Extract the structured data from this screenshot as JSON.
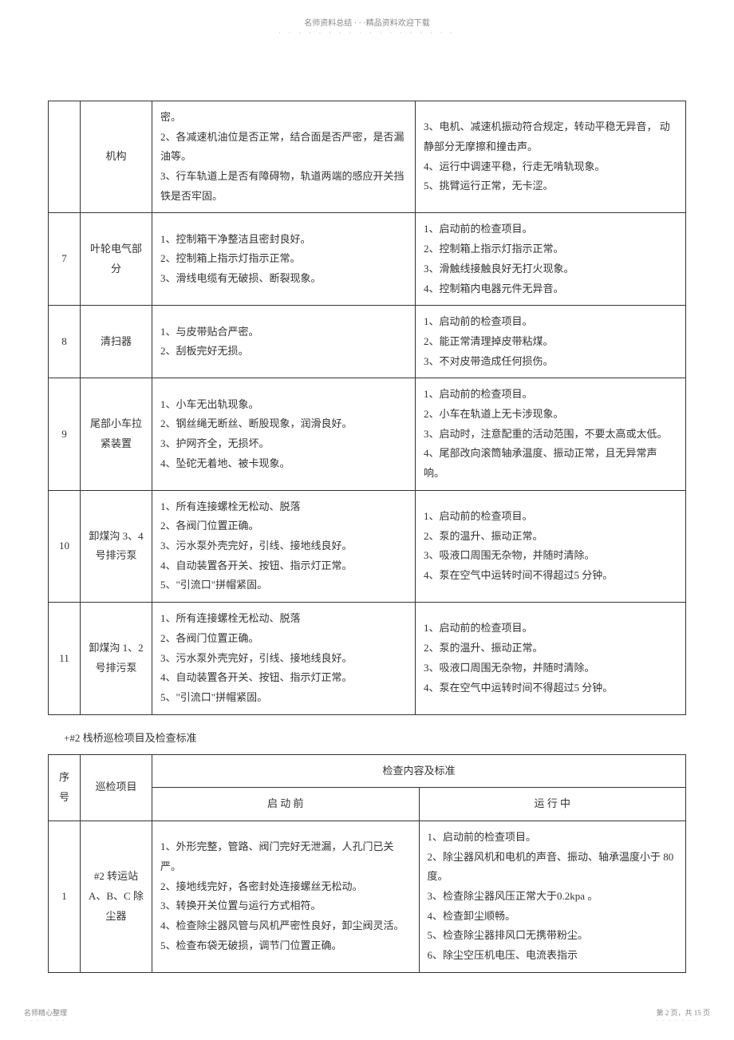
{
  "header": {
    "text": "名师资料总结 · · ·精品资料欢迎下载",
    "dots": "· · · · · · · · · · · · · · · · · ·"
  },
  "table1": {
    "rows": [
      {
        "num": "",
        "item": "机构",
        "before": "密。\n2、各减速机油位是否正常，结合面是否严密，是否漏油等。\n3、行车轨道上是否有障碍物，轨道两端的感应开关挡铁是否牢固。",
        "running": "3、电机、减速机振动符合规定，转动平稳无异音， 动静部分无摩擦和撞击声。\n4、运行中调速平稳，行走无啃轨现象。\n5、挑臂运行正常，无卡涩。"
      },
      {
        "num": "7",
        "item": "叶轮电气部分",
        "before": "1、控制箱干净整洁且密封良好。\n2、控制箱上指示灯指示正常。\n3、滑线电缆有无破损、断裂现象。",
        "running": "1、启动前的检查项目。\n2、控制箱上指示灯指示正常。\n3、滑触线接触良好无打火现象。\n4、控制箱内电器元件无异音。"
      },
      {
        "num": "8",
        "item": "清扫器",
        "before": "1、与皮带贴合严密。\n2、刮板完好无损。",
        "running": "1、启动前的检查项目。\n2、能正常清理掉皮带粘煤。\n3、不对皮带造成任何损伤。"
      },
      {
        "num": "9",
        "item": "尾部小车拉紧装置",
        "before": "1、小车无出轨现象。\n2、钢丝绳无断丝、断股现象，润滑良好。\n3、护网齐全，无损坏。\n4、坠砣无着地、被卡现象。",
        "running": "1、启动前的检查项目。\n2、小车在轨道上无卡涉现象。\n3、启动时，注意配重的活动范围，不要太高或太低。\n4、尾部改向滚筒轴承温度、振动正常，且无异常声响。"
      },
      {
        "num": "10",
        "item": "卸煤沟 3、4 号排污泵",
        "before": "1、所有连接螺栓无松动、脱落\n2、各阀门位置正确。\n3、污水泵外壳完好，引线、接地线良好。\n4、自动装置各开关、按钮、指示灯正常。\n5、\"引流口\"拼帽紧固。",
        "running": "1、启动前的检查项目。\n2、泵的温升、振动正常。\n3、吸液口周围无杂物，并随时清除。\n4、泵在空气中运转时间不得超过5 分钟。"
      },
      {
        "num": "11",
        "item": "卸煤沟 1、2 号排污泵",
        "before": "1、所有连接螺栓无松动、脱落\n2、各阀门位置正确。\n3、污水泵外壳完好，引线、接地线良好。\n4、自动装置各开关、按钮、指示灯正常。\n5、\"引流口\"拼帽紧固。",
        "running": "1、启动前的检查项目。\n2、泵的温升、振动正常。\n3、吸液口周围无杂物，并随时清除。\n4、泵在空气中运转时间不得超过5 分钟。"
      }
    ]
  },
  "section_title": "+#2 栈桥巡检项目及检查标准",
  "table2": {
    "headers": {
      "num": "序号",
      "item": "巡检项目",
      "content": "检查内容及标准",
      "before": "启 动 前",
      "running": "运 行 中"
    },
    "rows": [
      {
        "num": "1",
        "item": "#2 转运站A、B、C 除尘器",
        "before": "1、外形完整，管路、阀门完好无泄漏，人孔门已关严。\n2、接地线完好，各密封处连接螺丝无松动。\n3、转换开关位置与运行方式相符。\n4、检查除尘器风管与风机严密性良好，卸尘阀灵活。\n5、检查布袋无破损，调节门位置正确。",
        "running": "1、启动前的检查项目。\n2、除尘器风机和电机的声音、振动、轴承温度小于 80 度。\n3、检查除尘器风压正常大于0.2kpa 。\n4、检查卸尘顺畅。\n5、检查除尘器排风口无携带粉尘。\n6、除尘空压机电压、电流表指示"
      }
    ]
  },
  "footer": {
    "left": "名师精心整理",
    "right": "第 2 页，共 15 页",
    "dots": "· · · · · · ·"
  }
}
